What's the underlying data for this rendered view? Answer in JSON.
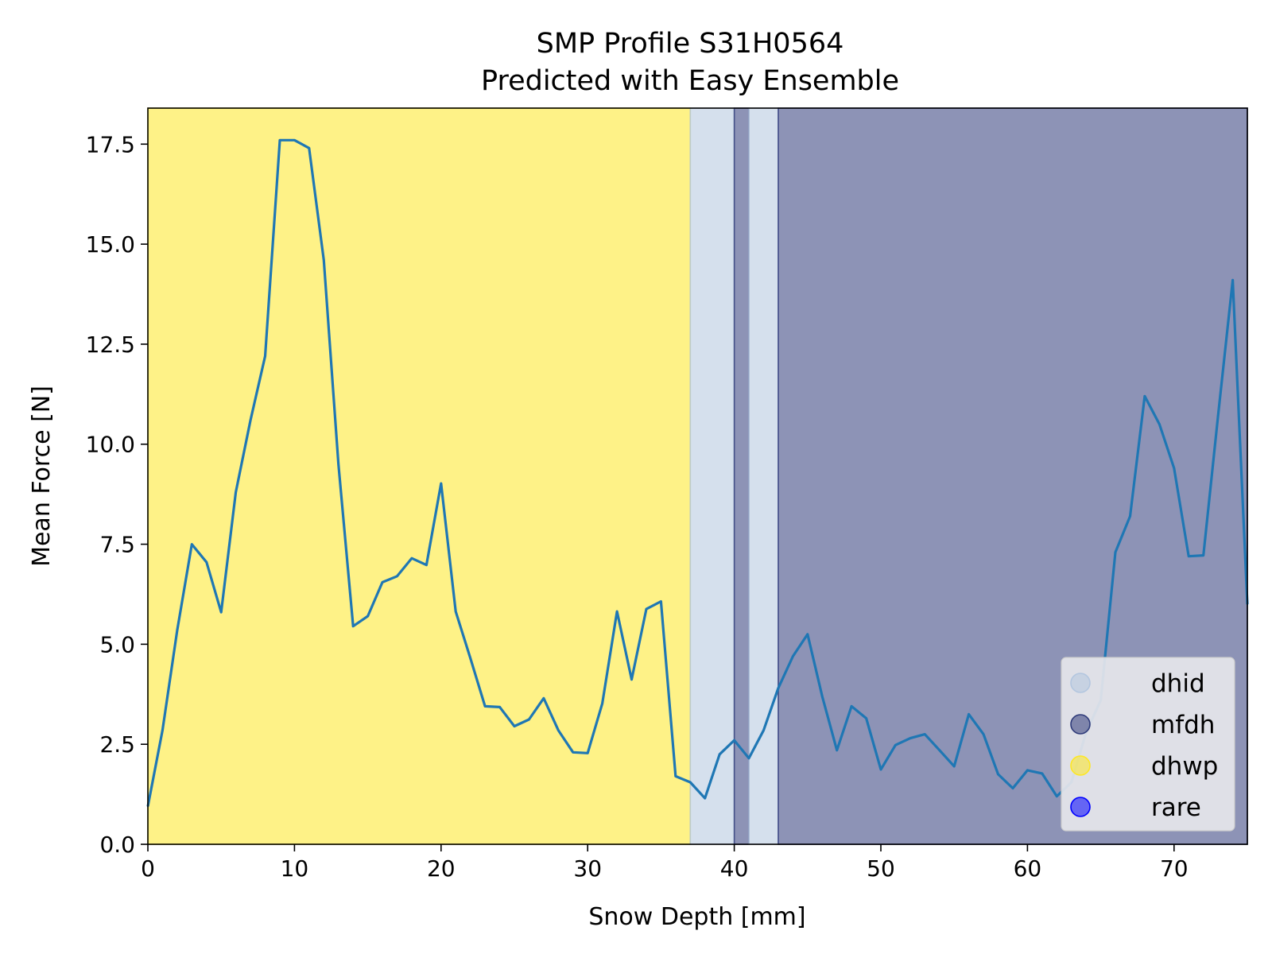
{
  "chart_data": {
    "type": "line",
    "title_line1": "SMP Profile S31H0564",
    "title_line2": "Predicted with Easy Ensemble",
    "xlabel": "Snow Depth [mm]",
    "ylabel": "Mean Force [N]",
    "xlim": [
      0,
      75
    ],
    "ylim": [
      0,
      18.4
    ],
    "xticks": [
      0,
      10,
      20,
      30,
      40,
      50,
      60,
      70
    ],
    "xtick_labels": [
      "0",
      "10",
      "20",
      "30",
      "40",
      "50",
      "60",
      "70"
    ],
    "yticks": [
      0,
      2.5,
      5,
      7.5,
      10,
      12.5,
      15,
      17.5
    ],
    "ytick_labels": [
      "0.0",
      "2.5",
      "5.0",
      "7.5",
      "10.0",
      "12.5",
      "15.0",
      "17.5"
    ],
    "grid": false,
    "series": [
      {
        "color": "#1f77b4",
        "x": [
          0,
          1,
          2,
          3,
          4,
          5,
          6,
          7,
          8,
          9,
          10,
          11,
          12,
          13,
          14,
          15,
          16,
          17,
          18,
          19,
          20,
          21,
          22,
          23,
          24,
          25,
          26,
          27,
          28,
          29,
          30,
          31,
          32,
          33,
          34,
          35,
          36,
          37,
          38,
          39,
          40,
          41,
          42,
          43,
          44,
          45,
          46,
          47,
          48,
          49,
          50,
          51,
          52,
          53,
          54,
          55,
          56,
          57,
          58,
          59,
          60,
          61,
          62,
          63,
          64,
          65,
          66,
          67,
          68,
          69,
          70,
          71,
          72,
          73,
          74,
          75
        ],
        "y": [
          0.95,
          2.85,
          5.35,
          7.5,
          7.05,
          5.8,
          8.8,
          10.6,
          12.2,
          17.6,
          17.6,
          17.4,
          14.6,
          9.5,
          5.45,
          5.7,
          6.55,
          6.7,
          7.15,
          6.98,
          9.02,
          5.82,
          4.65,
          3.45,
          3.43,
          2.95,
          3.12,
          3.65,
          2.85,
          2.3,
          2.28,
          3.52,
          5.82,
          4.12,
          5.88,
          6.07,
          1.7,
          1.55,
          1.15,
          2.25,
          2.6,
          2.15,
          2.85,
          3.9,
          4.7,
          5.25,
          3.7,
          2.35,
          3.45,
          3.15,
          1.87,
          2.48,
          2.65,
          2.75,
          2.35,
          1.95,
          3.25,
          2.75,
          1.75,
          1.4,
          1.85,
          1.77,
          1.2,
          1.55,
          2.8,
          3.6,
          7.3,
          8.2,
          11.2,
          10.5,
          9.4,
          7.2,
          7.22,
          10.7,
          14.1,
          6.0
        ]
      }
    ],
    "bands": [
      {
        "class": "dhwp",
        "start": 0,
        "end": 37,
        "color": "#fde725",
        "opacity": 0.55
      },
      {
        "class": "dhid",
        "start": 37,
        "end": 40,
        "color": "#b3c6df",
        "opacity": 0.55
      },
      {
        "class": "mfdh",
        "start": 40,
        "end": 41,
        "color": "#2f3b7a",
        "opacity": 0.55
      },
      {
        "class": "dhid",
        "start": 41,
        "end": 43,
        "color": "#b3c6df",
        "opacity": 0.55
      },
      {
        "class": "mfdh",
        "start": 43,
        "end": 75,
        "color": "#2f3b7a",
        "opacity": 0.55
      }
    ],
    "legend_position": "lower-right",
    "legend": [
      {
        "label": "dhid",
        "color": "#b3c6df"
      },
      {
        "label": "mfdh",
        "color": "#2f3b7a"
      },
      {
        "label": "dhwp",
        "color": "#fde725"
      },
      {
        "label": "rare",
        "color": "#0000ff"
      }
    ]
  }
}
